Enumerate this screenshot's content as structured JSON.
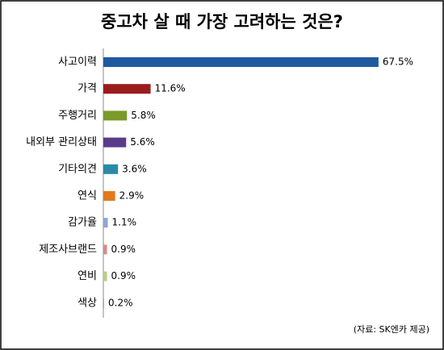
{
  "chart_data": {
    "type": "bar",
    "orientation": "horizontal",
    "title": "중고차 살 때 가장 고려하는 것은?",
    "categories": [
      "사고이력",
      "가격",
      "주행거리",
      "내외부 관리상태",
      "기타의견",
      "연식",
      "감가율",
      "제조사브랜드",
      "연비",
      "색상"
    ],
    "values": [
      67.5,
      11.6,
      5.8,
      5.6,
      3.6,
      2.9,
      1.1,
      0.9,
      0.9,
      0.2
    ],
    "value_labels": [
      "67.5%",
      "11.6%",
      "5.8%",
      "5.6%",
      "3.6%",
      "2.9%",
      "1.1%",
      "0.9%",
      "0.9%",
      "0.2%"
    ],
    "colors": [
      "#1f5aa0",
      "#9b1c1c",
      "#7a9a2a",
      "#5b3a8c",
      "#2a8aa8",
      "#e07b1f",
      "#8fa6d4",
      "#d98a8a",
      "#b5cf8a",
      "#b0a0cc"
    ],
    "source": "(자료: SK엔카 제공)"
  }
}
